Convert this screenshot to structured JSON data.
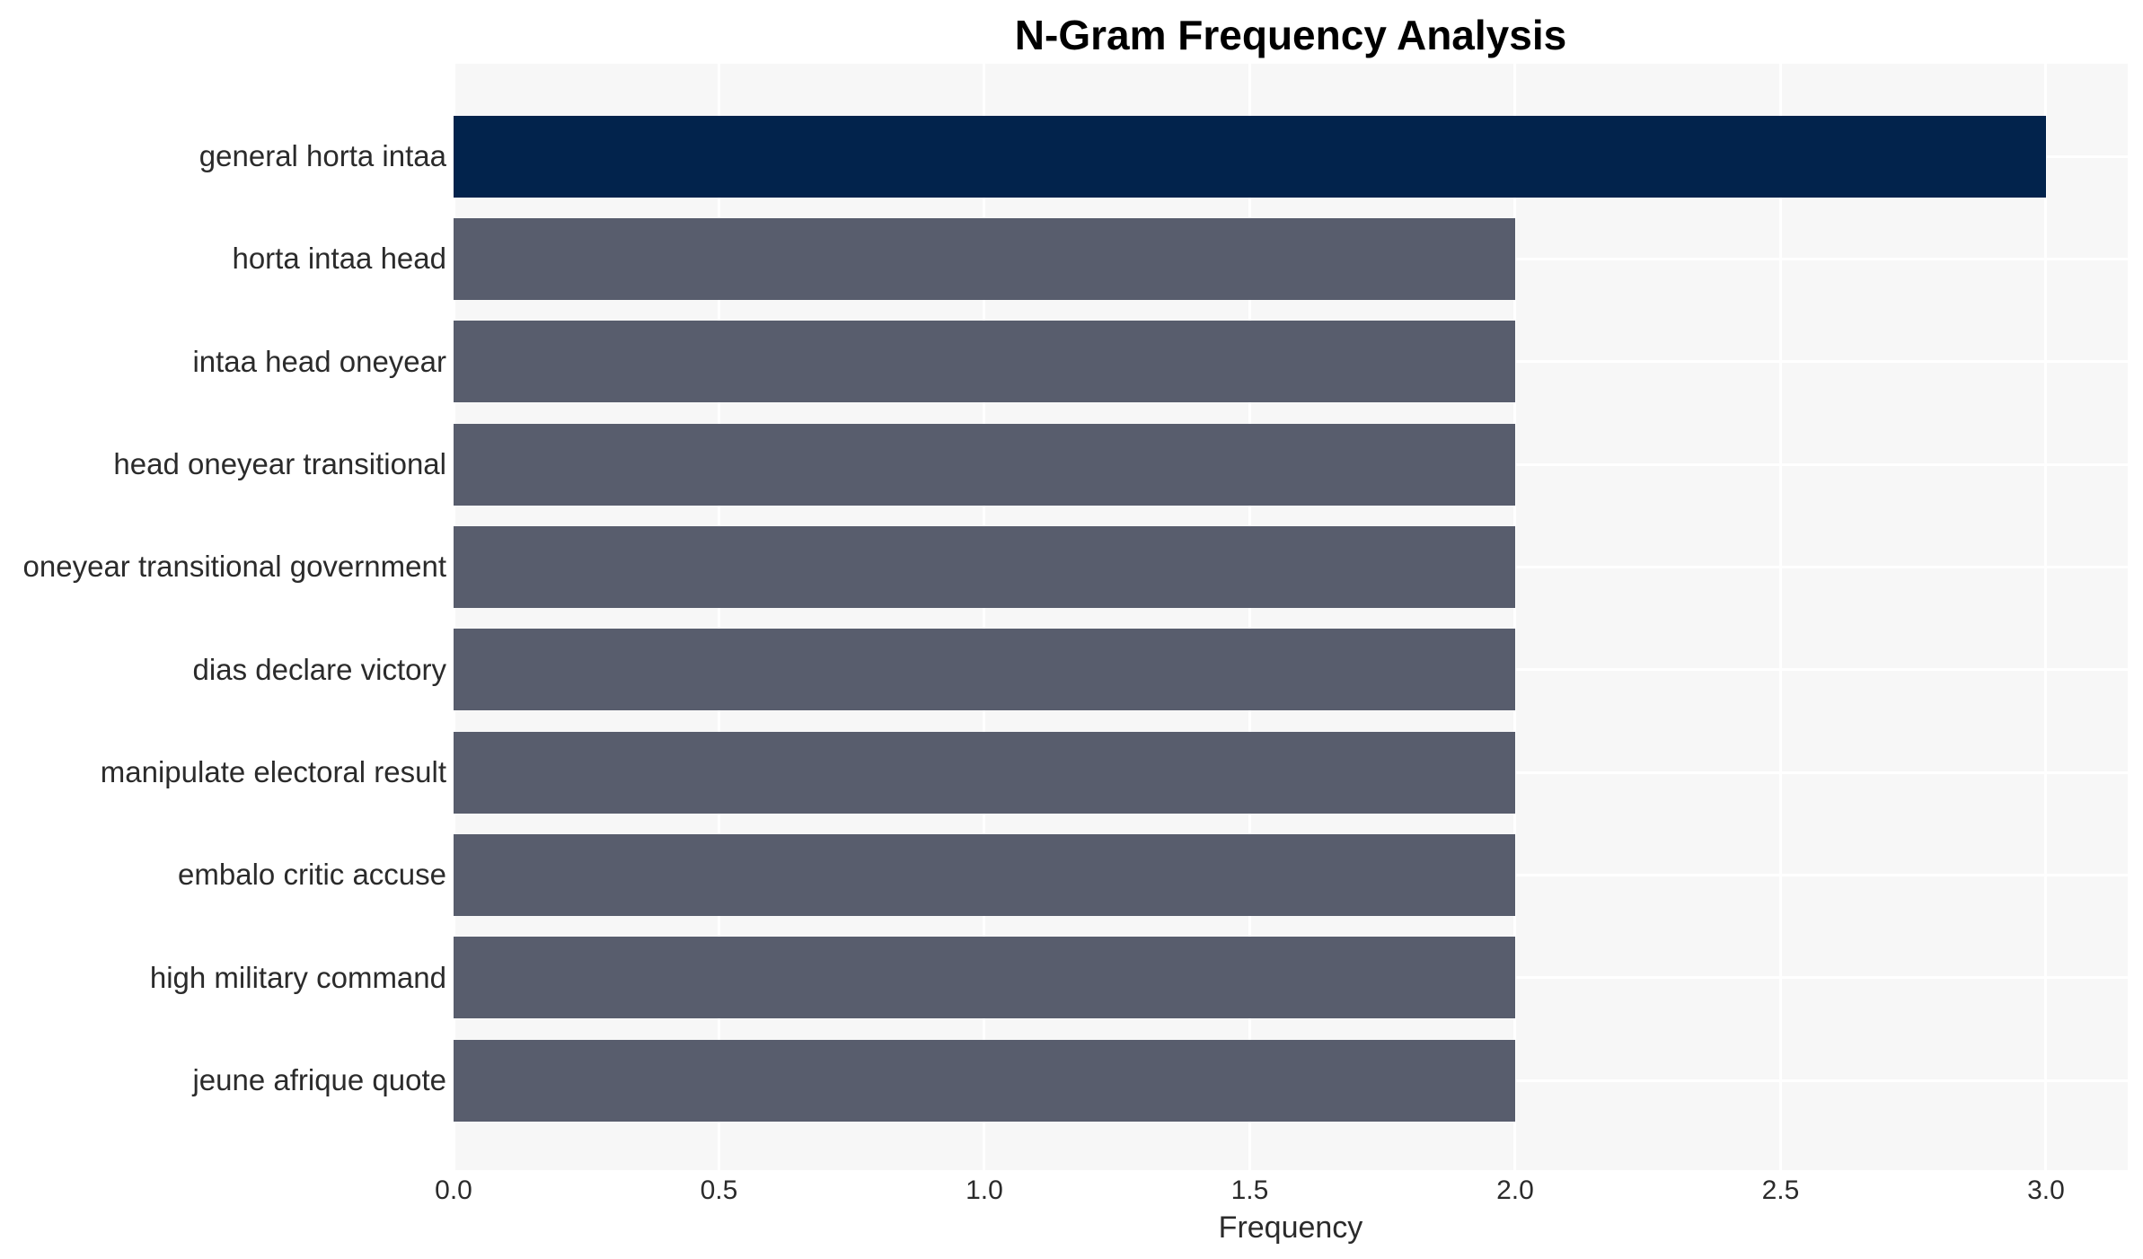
{
  "chart_data": {
    "type": "bar",
    "orientation": "horizontal",
    "title": "N-Gram Frequency Analysis",
    "xlabel": "Frequency",
    "categories": [
      "general horta intaa",
      "horta intaa head",
      "intaa head oneyear",
      "head oneyear transitional",
      "oneyear transitional government",
      "dias declare victory",
      "manipulate electoral result",
      "embalo critic accuse",
      "high military command",
      "jeune afrique quote"
    ],
    "values": [
      3,
      2,
      2,
      2,
      2,
      2,
      2,
      2,
      2,
      2
    ],
    "bar_colors": [
      "#02234c",
      "#585d6d",
      "#585d6d",
      "#585d6d",
      "#585d6d",
      "#585d6d",
      "#585d6d",
      "#585d6d",
      "#585d6d",
      "#585d6d"
    ],
    "xlim": [
      0,
      3.154
    ],
    "xticks": [
      0,
      0.5,
      1,
      1.5,
      2,
      2.5,
      3
    ],
    "xtick_labels": [
      "0.0",
      "0.5",
      "1.0",
      "1.5",
      "2.0",
      "2.5",
      "3.0"
    ],
    "grid": true,
    "legend": null,
    "colors": {
      "bar_highlight": "#02234c",
      "bar_default": "#585d6d",
      "plot_background": "#f7f7f7",
      "gridline": "#ffffff",
      "figure_background": "#ffffff",
      "tick_text": "#2b2b2b",
      "title_text": "#000000"
    }
  }
}
